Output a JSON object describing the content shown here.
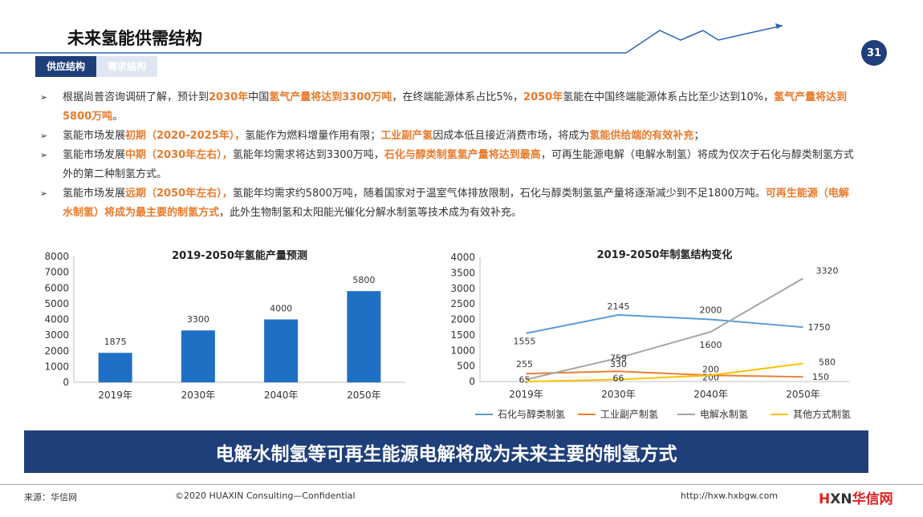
{
  "page": {
    "title": "未来氢能供需结构",
    "number": "31",
    "tabs": [
      {
        "label": "供应结构",
        "active": true
      },
      {
        "label": "需求结构",
        "active": false
      }
    ]
  },
  "bullets": [
    [
      {
        "t": "根据尚普咨询调研了解，预计到",
        "hl": false
      },
      {
        "t": "2030年",
        "hl": true
      },
      {
        "t": "中国",
        "hl": false
      },
      {
        "t": "氢气产量将达到3300万吨",
        "hl": true
      },
      {
        "t": "，在终端能源体系占比5%，",
        "hl": false
      },
      {
        "t": "2050年",
        "hl": true
      },
      {
        "t": "氢能在中国终端能源体系占比至少达到10%，",
        "hl": false
      },
      {
        "t": "氢气产量将达到5800万吨",
        "hl": true
      },
      {
        "t": "。",
        "hl": false
      }
    ],
    [
      {
        "t": "氢能市场发展",
        "hl": false
      },
      {
        "t": "初期（2020-2025年），",
        "hl": true
      },
      {
        "t": "氢能作为燃料增量作用有限；",
        "hl": false
      },
      {
        "t": "工业副产氢",
        "hl": true
      },
      {
        "t": "因成本低且接近消费市场，将成为",
        "hl": false
      },
      {
        "t": "氢能供给端的有效补充",
        "hl": true
      },
      {
        "t": "；",
        "hl": false
      }
    ],
    [
      {
        "t": "氢能市场发展",
        "hl": false
      },
      {
        "t": "中期（2030年左右），",
        "hl": true
      },
      {
        "t": "氢能年均需求将达到3300万吨，",
        "hl": false
      },
      {
        "t": "石化与醇类制氢氢产量将达到最高",
        "hl": true
      },
      {
        "t": "，可再生能源电解（电解水制氢）将成为仅次于石化与醇类制氢方式外的第二种制氢方式。",
        "hl": false
      }
    ],
    [
      {
        "t": "氢能市场发展",
        "hl": false
      },
      {
        "t": "远期（2050年左右），",
        "hl": true
      },
      {
        "t": "氢能年均需求约5800万吨，随着国家对于温室气体排放限制，石化与醇类制氢氢产量将逐渐减少到不足1800万吨。",
        "hl": false
      },
      {
        "t": "可再生能源（电解水制氢）将成为最主要的制氢方式",
        "hl": true
      },
      {
        "t": "，此外生物制氢和太阳能光催化分解水制氢等技术成为有效补充。",
        "hl": false
      }
    ]
  ],
  "chart_data": [
    {
      "type": "bar",
      "title": "2019-2050年氢能产量预测",
      "categories": [
        "2019年",
        "2030年",
        "2040年",
        "2050年"
      ],
      "values": [
        1875,
        3300,
        4000,
        5800
      ],
      "ylim": [
        0,
        8000
      ],
      "yticks": [
        0,
        1000,
        2000,
        3000,
        4000,
        5000,
        6000,
        7000,
        8000
      ],
      "color": "#1f6fc5",
      "grid": false
    },
    {
      "type": "line",
      "title": "2019-2050年制氢结构变化",
      "categories": [
        "2019年",
        "2030年",
        "2040年",
        "2050年"
      ],
      "ylim": [
        0,
        4000
      ],
      "yticks": [
        0,
        500,
        1000,
        1500,
        2000,
        2500,
        3000,
        3500,
        4000
      ],
      "legend_position": "bottom",
      "grid": false,
      "series": [
        {
          "name": "石化与醇类制氢",
          "values": [
            1555,
            2145,
            2000,
            1750
          ],
          "color": "#5b9bd5",
          "labels": [
            "1555",
            "2145",
            "2000",
            "1750"
          ]
        },
        {
          "name": "工业副产制氢",
          "values": [
            255,
            330,
            200,
            150
          ],
          "color": "#ed7d31",
          "labels": [
            "255",
            "330",
            "200",
            "150"
          ]
        },
        {
          "name": "电解水制氢",
          "values": [
            65,
            759,
            1600,
            3320
          ],
          "color": "#a5a5a5",
          "labels": [
            "65",
            "759",
            "1600",
            "3320"
          ]
        },
        {
          "name": "其他方式制氢",
          "values": [
            0,
            66,
            200,
            580
          ],
          "color": "#ffc000",
          "labels": [
            "",
            "66",
            "200",
            "580"
          ]
        }
      ]
    }
  ],
  "banner": "电解水制氢等可再生能源电解将成为未来主要的制氢方式",
  "footer": {
    "source": "来源：华信网",
    "copyright": "©2020 HUAXIN Consulting—Confidential",
    "url": "http://hxw.hxbgw.com",
    "logo_h": "H",
    "logo_xn": "XN",
    "logo_cn": "华信网"
  },
  "colors": {
    "navy": "#1f3f7a",
    "highlight": "#e97a2b"
  }
}
